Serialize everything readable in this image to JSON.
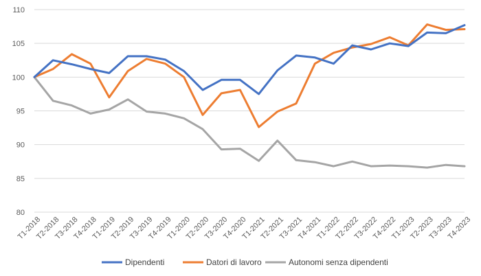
{
  "chart_data": {
    "type": "line",
    "title": "",
    "xlabel": "",
    "ylabel": "",
    "ylim": [
      80,
      110
    ],
    "yticks": [
      80,
      85,
      90,
      95,
      100,
      105,
      110
    ],
    "grid": true,
    "legend_position": "bottom",
    "categories": [
      "T1-2018",
      "T2-2018",
      "T3-2018",
      "T4-2018",
      "T1-2019",
      "T2-2019",
      "T3-2019",
      "T4-2019",
      "T1-2020",
      "T2-2020",
      "T3-2020",
      "T4-2020",
      "T1-2021",
      "T2-2021",
      "T3-2021",
      "T4-2021",
      "T1-2022",
      "T2-2022",
      "T3-2022",
      "T4-2022",
      "T1-2023",
      "T2-2023",
      "T3-2023",
      "T4-2023"
    ],
    "series": [
      {
        "name": "Dipendenti",
        "color": "#4472c4",
        "values": [
          100,
          102.5,
          101.9,
          101.2,
          100.6,
          103.1,
          103.1,
          102.6,
          100.9,
          98.1,
          99.6,
          99.6,
          97.5,
          101.0,
          103.2,
          102.9,
          102.0,
          104.7,
          104.1,
          105.0,
          104.6,
          106.6,
          106.5,
          107.7
        ]
      },
      {
        "name": "Datori di lavoro",
        "color": "#ed7d31",
        "values": [
          100,
          101.2,
          103.4,
          102.0,
          97.0,
          100.9,
          102.7,
          102.0,
          100.0,
          94.4,
          97.6,
          98.1,
          92.6,
          94.9,
          96.1,
          102.0,
          103.6,
          104.4,
          104.9,
          105.9,
          104.7,
          107.8,
          107.0,
          107.1
        ]
      },
      {
        "name": "Autonomi senza dipendenti",
        "color": "#a5a5a5",
        "values": [
          100,
          96.5,
          95.8,
          94.6,
          95.2,
          96.7,
          94.9,
          94.6,
          93.9,
          92.3,
          89.3,
          89.4,
          87.6,
          90.6,
          87.7,
          87.4,
          86.8,
          87.5,
          86.8,
          86.9,
          86.8,
          86.6,
          87.0,
          86.8
        ]
      }
    ]
  }
}
